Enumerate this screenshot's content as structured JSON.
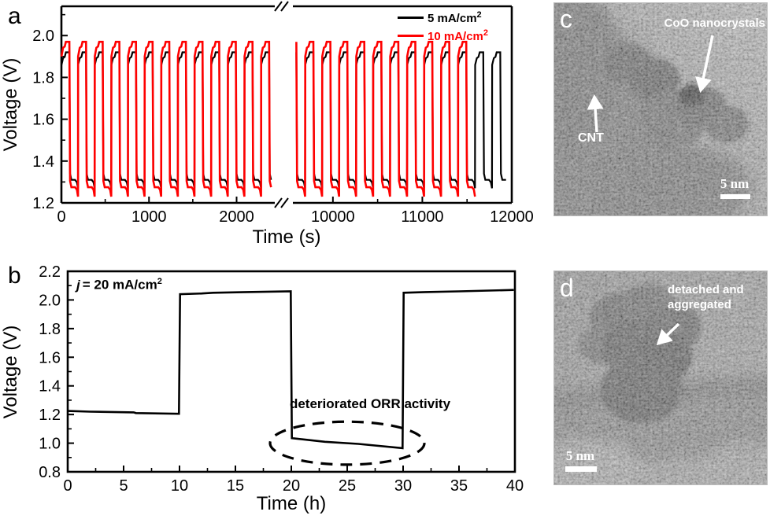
{
  "figure": {
    "background": "#ffffff",
    "panel_a": {
      "label": "a",
      "legend": [
        {
          "text": "5 mA/cm",
          "sup": "2",
          "color": "#000000"
        },
        {
          "text": "10 mA/cm",
          "sup": "2",
          "color": "#ff0000"
        }
      ]
    },
    "panel_b": {
      "label": "b",
      "current_density": {
        "italic": "j",
        "text": "= 20 mA/cm",
        "sup": "2"
      },
      "ellipse_label": "deteriorated ORR activity"
    },
    "panel_c": {
      "label": "c",
      "annotation_coo": "CoO nanocrystals",
      "annotation_cnt": "CNT",
      "scale_bar": "5 nm"
    },
    "panel_d": {
      "label": "d",
      "annotation_line1": "detached and",
      "annotation_line2": "aggregated",
      "scale_bar": "5 nm"
    }
  },
  "chart_data": [
    {
      "panel": "a",
      "type": "line",
      "title": "Galvanostatic charge-discharge cycling",
      "xlabel": "Time (s)",
      "ylabel": "Voltage (V)",
      "x_break": {
        "between": [
          2400,
          9570
        ]
      },
      "x_segments": [
        [
          0,
          2400
        ],
        [
          9570,
          12000
        ]
      ],
      "xtick_values": [
        0,
        1000,
        2000,
        10000,
        11000,
        12000
      ],
      "xtick_labels": [
        "0",
        "1000",
        "2000",
        "10000",
        "11000",
        "12000"
      ],
      "xtick_minor": [
        500,
        1500,
        10500,
        11500
      ],
      "ylim": [
        1.2,
        2.14
      ],
      "ytick_values": [
        1.2,
        1.4,
        1.6,
        1.8,
        2.0
      ],
      "ytick_labels": [
        "1.2",
        "1.4",
        "1.6",
        "1.8",
        "2.0"
      ],
      "ytick_minor": [
        1.3,
        1.5,
        1.7,
        1.9,
        2.1
      ],
      "grid": false,
      "legend_position": "top-right",
      "series": [
        {
          "name": "5 mA/cm2",
          "color": "#000000",
          "stroke_width": 2.2,
          "waveform": "square-cycling",
          "cycle_period_s": 190,
          "charge_plateau_v": 1.92,
          "charge_start_v": 1.86,
          "discharge_plateau_v": 1.31,
          "discharge_end_v": 1.27,
          "t_start": 0,
          "t_end": 11950
        },
        {
          "name": "10 mA/cm2",
          "color": "#ff0000",
          "stroke_width": 2.6,
          "waveform": "square-cycling",
          "cycle_period_s": 190,
          "charge_plateau_v": 1.97,
          "charge_start_v": 1.9,
          "discharge_plateau_v": 1.275,
          "discharge_end_v": 1.23,
          "t_start": 0,
          "t_end": 11590
        }
      ]
    },
    {
      "panel": "b",
      "type": "line",
      "title": "Long-cycle test at 20 mA/cm2",
      "xlabel": "Time (h)",
      "ylabel": "Voltage (V)",
      "xlim": [
        0,
        40
      ],
      "xtick_values": [
        0,
        5,
        10,
        15,
        20,
        25,
        30,
        35,
        40
      ],
      "xtick_labels": [
        "0",
        "5",
        "10",
        "15",
        "20",
        "25",
        "30",
        "35",
        "40"
      ],
      "xtick_minor": [
        2.5,
        7.5,
        12.5,
        17.5,
        22.5,
        27.5,
        32.5,
        37.5
      ],
      "ylim": [
        0.8,
        2.2
      ],
      "ytick_values": [
        0.8,
        1.0,
        1.2,
        1.4,
        1.6,
        1.8,
        2.0,
        2.2
      ],
      "ytick_labels": [
        "0.8",
        "1.0",
        "1.2",
        "1.4",
        "1.6",
        "1.8",
        "2.0",
        "2.2"
      ],
      "ytick_minor": [
        0.9,
        1.1,
        1.3,
        1.5,
        1.7,
        1.9,
        2.1
      ],
      "grid": false,
      "annotation": "j = 20 mA/cm2",
      "series": [
        {
          "name": "20 mA/cm2",
          "color": "#000000",
          "stroke_width": 2.6,
          "points": [
            [
              0,
              1.225
            ],
            [
              2,
              1.22
            ],
            [
              5.9,
              1.215
            ],
            [
              6.1,
              1.21
            ],
            [
              9.95,
              1.205
            ],
            [
              10.05,
              2.04
            ],
            [
              12,
              2.045
            ],
            [
              13,
              2.05
            ],
            [
              16,
              2.055
            ],
            [
              19.95,
              2.06
            ],
            [
              20.05,
              1.035
            ],
            [
              23,
              1.01
            ],
            [
              26,
              0.995
            ],
            [
              29.95,
              0.965
            ],
            [
              30.05,
              2.05
            ],
            [
              32,
              2.055
            ],
            [
              35,
              2.06
            ],
            [
              39.9,
              2.07
            ]
          ]
        }
      ],
      "ellipse_annotation": {
        "label": "deteriorated ORR activity",
        "center_x_h": 25,
        "center_y_v": 1.0,
        "rx_h": 6.9,
        "ry_v": 0.15
      }
    }
  ]
}
